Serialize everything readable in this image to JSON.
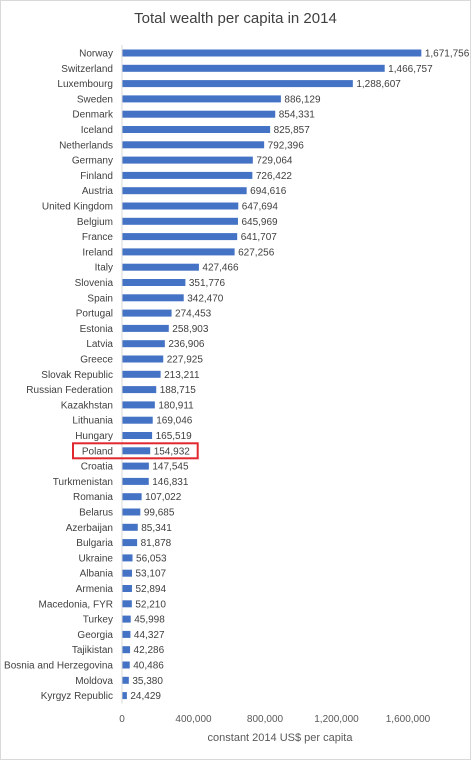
{
  "chart_data": {
    "type": "bar",
    "orientation": "horizontal",
    "title": "Total wealth per capita in 2014",
    "xlabel": "constant 2014 US$ per capita",
    "ylabel": "",
    "xlim": [
      0,
      1800000
    ],
    "x_ticks": [
      "0",
      "400,000",
      "800,000",
      "1,200,000",
      "1,600,000"
    ],
    "x_tick_values": [
      0,
      400000,
      800000,
      1200000,
      1600000
    ],
    "grid": false,
    "bar_color": "#4472c4",
    "highlight_color": "#e0282e",
    "highlighted_category": "Poland",
    "categories": [
      "Norway",
      "Switzerland",
      "Luxembourg",
      "Sweden",
      "Denmark",
      "Iceland",
      "Netherlands",
      "Germany",
      "Finland",
      "Austria",
      "United Kingdom",
      "Belgium",
      "France",
      "Ireland",
      "Italy",
      "Slovenia",
      "Spain",
      "Portugal",
      "Estonia",
      "Latvia",
      "Greece",
      "Slovak Republic",
      "Russian Federation",
      "Kazakhstan",
      "Lithuania",
      "Hungary",
      "Poland",
      "Croatia",
      "Turkmenistan",
      "Romania",
      "Belarus",
      "Azerbaijan",
      "Bulgaria",
      "Ukraine",
      "Albania",
      "Armenia",
      "Macedonia, FYR",
      "Turkey",
      "Georgia",
      "Tajikistan",
      "Bosnia and Herzegovina",
      "Moldova",
      "Kyrgyz Republic"
    ],
    "values": [
      1671756,
      1466757,
      1288607,
      886129,
      854331,
      825857,
      792396,
      729064,
      726422,
      694616,
      647694,
      645969,
      641707,
      627256,
      427466,
      351776,
      342470,
      274453,
      258903,
      236906,
      227925,
      213211,
      188715,
      180911,
      169046,
      165519,
      154932,
      147545,
      146831,
      107022,
      99685,
      85341,
      81878,
      56053,
      53107,
      52894,
      52210,
      45998,
      44327,
      42286,
      40486,
      35380,
      24429
    ],
    "labels": [
      "1,671,756",
      "1,466,757",
      "1,288,607",
      "886,129",
      "854,331",
      "825,857",
      "792,396",
      "729,064",
      "726,422",
      "694,616",
      "647,694",
      "645,969",
      "641,707",
      "627,256",
      "427,466",
      "351,776",
      "342,470",
      "274,453",
      "258,903",
      "236,906",
      "227,925",
      "213,211",
      "188,715",
      "180,911",
      "169,046",
      "165,519",
      "154,932",
      "147,545",
      "146,831",
      "107,022",
      "99,685",
      "85,341",
      "81,878",
      "56,053",
      "53,107",
      "52,894",
      "52,210",
      "45,998",
      "44,327",
      "42,286",
      "40,486",
      "35,380",
      "24,429"
    ]
  }
}
